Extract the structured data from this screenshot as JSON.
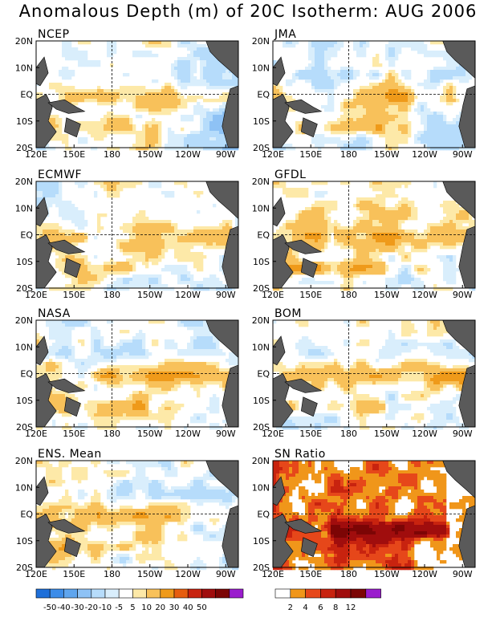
{
  "title": "Anomalous Depth (m) of 20C Isotherm: AUG 2006",
  "chart_data": [
    {
      "type": "heatmap",
      "title": "NCEP",
      "x_ticks": [
        "120E",
        "150E",
        "180",
        "150W",
        "120W",
        "90W"
      ],
      "y_ticks": [
        "20N",
        "10N",
        "EQ",
        "10S",
        "20S"
      ],
      "scale": "anomaly"
    },
    {
      "type": "heatmap",
      "title": "JMA",
      "x_ticks": [
        "120E",
        "150E",
        "180",
        "150W",
        "120W",
        "90W"
      ],
      "y_ticks": [
        "20N",
        "10N",
        "EQ",
        "10S",
        "20S"
      ],
      "scale": "anomaly"
    },
    {
      "type": "heatmap",
      "title": "ECMWF",
      "x_ticks": [
        "120E",
        "150E",
        "180",
        "150W",
        "120W",
        "90W"
      ],
      "y_ticks": [
        "20N",
        "10N",
        "EQ",
        "10S",
        "20S"
      ],
      "scale": "anomaly"
    },
    {
      "type": "heatmap",
      "title": "GFDL",
      "x_ticks": [
        "120E",
        "150E",
        "180",
        "150W",
        "120W",
        "90W"
      ],
      "y_ticks": [
        "20N",
        "10N",
        "EQ",
        "10S",
        "20S"
      ],
      "scale": "anomaly"
    },
    {
      "type": "heatmap",
      "title": "NASA",
      "x_ticks": [
        "120E",
        "150E",
        "180",
        "150W",
        "120W",
        "90W"
      ],
      "y_ticks": [
        "20N",
        "10N",
        "EQ",
        "10S",
        "20S"
      ],
      "scale": "anomaly"
    },
    {
      "type": "heatmap",
      "title": "BOM",
      "x_ticks": [
        "120E",
        "150E",
        "180",
        "150W",
        "120W",
        "90W"
      ],
      "y_ticks": [
        "20N",
        "10N",
        "EQ",
        "10S",
        "20S"
      ],
      "scale": "anomaly"
    },
    {
      "type": "heatmap",
      "title": "ENS. Mean",
      "x_ticks": [
        "120E",
        "150E",
        "180",
        "150W",
        "120W",
        "90W"
      ],
      "y_ticks": [
        "20N",
        "10N",
        "EQ",
        "10S",
        "20S"
      ],
      "scale": "anomaly"
    },
    {
      "type": "heatmap",
      "title": "SN Ratio",
      "x_ticks": [
        "120E",
        "150E",
        "180",
        "150W",
        "120W",
        "90W"
      ],
      "y_ticks": [
        "20N",
        "10N",
        "EQ",
        "10S",
        "20S"
      ],
      "scale": "ratio"
    }
  ],
  "legend_anomaly": {
    "labels": [
      "-50",
      "-40",
      "-30",
      "-20",
      "-10",
      "-5",
      "5",
      "10",
      "20",
      "30",
      "40",
      "50"
    ],
    "colors": [
      "#1e6fd9",
      "#3c8ce8",
      "#5fa5ee",
      "#8ec2f5",
      "#b6dcfb",
      "#d9eefc",
      "#ffffff",
      "#fde9a8",
      "#f8c15a",
      "#ef9a1a",
      "#e65d0f",
      "#c8230f",
      "#a00d0d",
      "#7c0505",
      "#9a1ccd"
    ]
  },
  "legend_ratio": {
    "labels": [
      "2",
      "4",
      "6",
      "8",
      "12"
    ],
    "colors": [
      "#ffffff",
      "#f0961a",
      "#e6471a",
      "#c8230f",
      "#a00d0d",
      "#7c0505",
      "#9a1ccd"
    ]
  },
  "colors": {
    "land": "#5a5a5a",
    "frame": "#000000"
  }
}
